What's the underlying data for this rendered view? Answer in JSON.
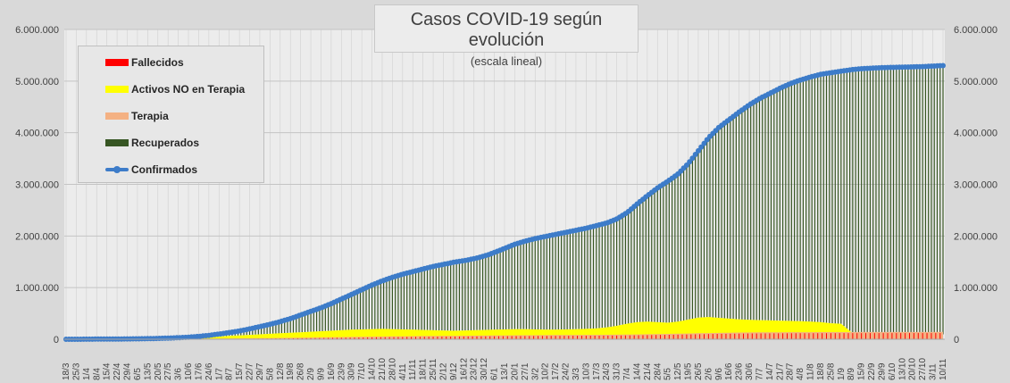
{
  "chart_data": {
    "type": "area",
    "title": "Casos COVID-19 según evolución",
    "subtitle": "(escala lineal)",
    "ylim": [
      0,
      6000000
    ],
    "y_ticks": [
      "0",
      "1.000.000",
      "2.000.000",
      "3.000.000",
      "4.000.000",
      "5.000.000",
      "6.000.000"
    ],
    "y_tick_values": [
      0,
      1000000,
      2000000,
      3000000,
      4000000,
      5000000,
      6000000
    ],
    "legend_position": "top-left",
    "grid": true,
    "x_tick_labels": [
      "18/3",
      "25/3",
      "1/4",
      "8/4",
      "15/4",
      "22/4",
      "29/4",
      "6/5",
      "13/5",
      "20/5",
      "27/5",
      "3/6",
      "10/6",
      "17/6",
      "24/6",
      "1/7",
      "8/7",
      "15/7",
      "22/7",
      "29/7",
      "5/8",
      "12/8",
      "19/8",
      "26/8",
      "2/9",
      "9/9",
      "16/9",
      "23/9",
      "30/9",
      "7/10",
      "14/10",
      "21/10",
      "28/10",
      "4/11",
      "11/11",
      "18/11",
      "25/11",
      "2/12",
      "9/12",
      "16/12",
      "23/12",
      "30/12",
      "6/1",
      "13/1",
      "20/1",
      "27/1",
      "3/2",
      "10/2",
      "17/2",
      "24/2",
      "3/3",
      "10/3",
      "17/3",
      "24/3",
      "31/3",
      "7/4",
      "14/4",
      "21/4",
      "28/4",
      "5/5",
      "12/5",
      "19/5",
      "26/5",
      "2/6",
      "9/6",
      "16/6",
      "23/6",
      "30/6",
      "7/7",
      "14/7",
      "21/7",
      "28/7",
      "4/8",
      "11/8",
      "18/8",
      "25/8",
      "1/9",
      "8/9",
      "15/9",
      "22/9",
      "29/9",
      "6/10",
      "13/10",
      "20/10",
      "27/10",
      "3/11",
      "10/11"
    ],
    "series": [
      {
        "name": "Fallecidos",
        "color": "#ff0000"
      },
      {
        "name": "Activos NO en Terapia",
        "color": "#ffff00"
      },
      {
        "name": "Terapia",
        "color": "#f4b183"
      },
      {
        "name": "Recuperados",
        "color": "#375623"
      },
      {
        "name": "Confirmados",
        "color": "#3d7cc9"
      }
    ],
    "weekly_values": {
      "confirmados": [
        0,
        0,
        2000,
        3000,
        4000,
        5000,
        7000,
        9000,
        12000,
        16000,
        22000,
        30000,
        40000,
        55000,
        75000,
        100000,
        130000,
        160000,
        200000,
        245000,
        290000,
        340000,
        400000,
        470000,
        540000,
        610000,
        690000,
        780000,
        870000,
        960000,
        1050000,
        1130000,
        1200000,
        1260000,
        1310000,
        1360000,
        1410000,
        1450000,
        1490000,
        1520000,
        1560000,
        1610000,
        1680000,
        1760000,
        1840000,
        1900000,
        1950000,
        1990000,
        2030000,
        2070000,
        2110000,
        2150000,
        2200000,
        2250000,
        2330000,
        2450000,
        2620000,
        2780000,
        2930000,
        3060000,
        3200000,
        3400000,
        3650000,
        3900000,
        4100000,
        4250000,
        4400000,
        4540000,
        4660000,
        4760000,
        4860000,
        4950000,
        5020000,
        5080000,
        5130000,
        5160000,
        5190000,
        5220000,
        5240000,
        5250000,
        5260000,
        5265000,
        5270000,
        5275000,
        5280000,
        5290000,
        5300000
      ],
      "activos_no_terapia": [
        0,
        0,
        1500,
        2000,
        2500,
        3000,
        4000,
        5000,
        7000,
        9000,
        12000,
        16000,
        21000,
        30000,
        40000,
        52000,
        65000,
        75000,
        85000,
        95000,
        105000,
        115000,
        125000,
        135000,
        145000,
        155000,
        165000,
        175000,
        185000,
        190000,
        195000,
        200000,
        195000,
        190000,
        185000,
        180000,
        175000,
        170000,
        165000,
        170000,
        175000,
        180000,
        185000,
        190000,
        195000,
        195000,
        190000,
        185000,
        185000,
        190000,
        195000,
        200000,
        210000,
        230000,
        260000,
        300000,
        330000,
        340000,
        330000,
        320000,
        340000,
        380000,
        420000,
        430000,
        415000,
        400000,
        385000,
        375000,
        370000,
        365000,
        360000,
        355000,
        350000,
        340000,
        330000,
        310000,
        300000,
        140000,
        125000,
        115000,
        110000,
        105000,
        100000,
        100000,
        95000,
        95000,
        95000
      ],
      "fallecidos": [
        0,
        0,
        100,
        200,
        300,
        400,
        500,
        700,
        900,
        1200,
        1600,
        2000,
        2600,
        3300,
        4200,
        5200,
        6500,
        8000,
        9500,
        11000,
        13000,
        15000,
        17500,
        20000,
        22500,
        25000,
        27500,
        30000,
        32500,
        35000,
        37500,
        40000,
        42000,
        44000,
        46000,
        48000,
        49500,
        51000,
        52500,
        54000,
        55000,
        56500,
        58000,
        59500,
        61000,
        62500,
        63500,
        64500,
        65500,
        66500,
        67500,
        68500,
        69500,
        70500,
        72000,
        74000,
        77000,
        80000,
        83000,
        86000,
        89000,
        93000,
        97000,
        101000,
        104000,
        107000,
        109500,
        111500,
        113000,
        114000,
        115000,
        115800,
        116500,
        117000,
        117500,
        117900,
        118200,
        118500,
        118700,
        118900,
        119100,
        119300,
        119500,
        119700,
        119900,
        120100,
        120300
      ]
    }
  }
}
